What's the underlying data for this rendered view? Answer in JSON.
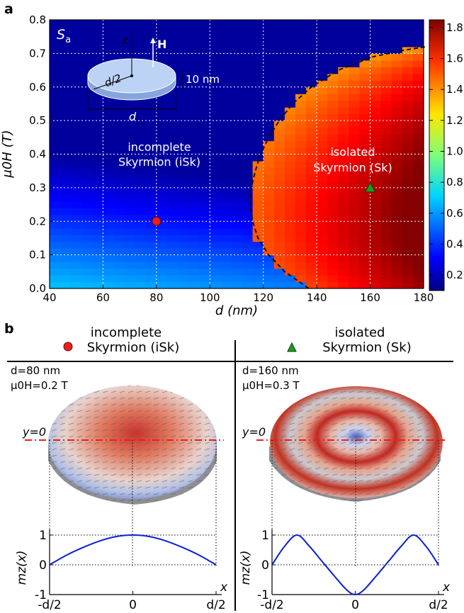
{
  "panel_a": {
    "label": "a",
    "s_label": "S",
    "s_sub": "a",
    "inset": {
      "z": "z",
      "h": "H",
      "half_d": "d/2",
      "thickness": "10 nm",
      "d": "d"
    },
    "region_isk": [
      "incomplete",
      "Skyrmion (iSk)"
    ],
    "region_sk": [
      "isolated",
      "Skyrmion (Sk)"
    ],
    "xlabel": "d (nm)",
    "ylabel": "μ0H (T)"
  },
  "chart_data": [
    {
      "type": "heatmap",
      "x_values": [
        40,
        60,
        80,
        100,
        120,
        140,
        160,
        180
      ],
      "xlim": [
        40,
        180
      ],
      "y_values": [
        0.0,
        0.1,
        0.2,
        0.3,
        0.4,
        0.5,
        0.6,
        0.7,
        0.8
      ],
      "ylim": [
        0.0,
        0.8
      ],
      "colorbar_ticks": [
        0.2,
        0.4,
        0.6,
        0.8,
        1.0,
        1.2,
        1.4,
        1.6,
        1.8
      ],
      "colorbar_range": [
        0.1,
        1.85
      ],
      "colormap": "jet",
      "grid": true,
      "markers": [
        {
          "label": "iSk",
          "d": 80,
          "H": 0.2,
          "shape": "circle",
          "color": "#e8201c"
        },
        {
          "label": "Sk",
          "d": 160,
          "H": 0.3,
          "shape": "triangle",
          "color": "#1f9a1f"
        }
      ],
      "boundary": [
        [
          137,
          0.0
        ],
        [
          128,
          0.05
        ],
        [
          122,
          0.1
        ],
        [
          118,
          0.15
        ],
        [
          116,
          0.2
        ],
        [
          115,
          0.25
        ],
        [
          115.5,
          0.3
        ],
        [
          117,
          0.35
        ],
        [
          119,
          0.4
        ],
        [
          122,
          0.45
        ],
        [
          126,
          0.5
        ],
        [
          131,
          0.55
        ],
        [
          138,
          0.6
        ],
        [
          148,
          0.65
        ],
        [
          161,
          0.69
        ],
        [
          173,
          0.71
        ],
        [
          181,
          0.72
        ]
      ]
    },
    {
      "type": "line",
      "title": "",
      "x_ticks": [
        "-d/2",
        "0",
        "d/2"
      ],
      "y_ticks": [
        "-1",
        "0",
        "1"
      ],
      "xlabel": "x",
      "ylabel": "mz(x)",
      "ylim": [
        -1,
        1
      ],
      "x": [
        -1.0,
        -0.8,
        -0.6,
        -0.4,
        -0.2,
        0.0,
        0.2,
        0.4,
        0.6,
        0.8,
        1.0
      ],
      "series": [
        {
          "values": [
            0.0,
            0.32,
            0.58,
            0.8,
            0.95,
            1.0,
            0.95,
            0.8,
            0.58,
            0.32,
            0.0
          ]
        }
      ]
    },
    {
      "type": "line",
      "title": "",
      "x_ticks": [
        "-d/2",
        "0",
        "d/2"
      ],
      "y_ticks": [
        "-1",
        "0",
        "1"
      ],
      "xlabel": "x",
      "ylabel": "mz(x)",
      "ylim": [
        -1,
        1
      ],
      "x": [
        -1.0,
        -0.85,
        -0.7,
        -0.55,
        -0.4,
        -0.25,
        -0.1,
        0.0,
        0.1,
        0.25,
        0.4,
        0.55,
        0.7,
        0.85,
        1.0
      ],
      "series": [
        {
          "values": [
            0.0,
            0.62,
            1.0,
            0.62,
            0.12,
            -0.38,
            -0.85,
            -1.0,
            -0.85,
            -0.38,
            0.12,
            0.62,
            1.0,
            0.62,
            0.0
          ]
        }
      ]
    }
  ],
  "panel_b": {
    "label": "b",
    "left": {
      "title": [
        "incomplete",
        "Skyrmion (iSk)"
      ],
      "d": "d=80 nm",
      "h": "μ0H=0.2 T",
      "y0": "y=0"
    },
    "right": {
      "title": [
        "isolated",
        "Skyrmion (Sk)"
      ],
      "d": "d=160 nm",
      "h": "μ0H=0.3 T",
      "y0": "y=0"
    }
  }
}
